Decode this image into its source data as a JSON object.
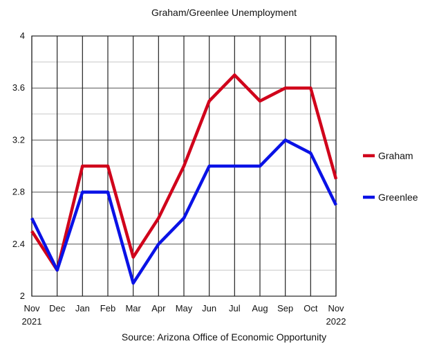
{
  "chart_data": {
    "type": "line",
    "title": "Graham/Greenlee Unemployment",
    "source": "Source: Arizona Office of Economic Opportunity",
    "categories": [
      "Nov",
      "Dec",
      "Jan",
      "Feb",
      "Mar",
      "Apr",
      "May",
      "Jun",
      "Jul",
      "Aug",
      "Sep",
      "Oct",
      "Nov"
    ],
    "category_sublabels": [
      "2021",
      "",
      "",
      "",
      "",
      "",
      "",
      "",
      "",
      "",
      "",
      "",
      "2022"
    ],
    "ylim": [
      2,
      4
    ],
    "yticks": [
      "2",
      "2.4",
      "2.8",
      "3.2",
      "3.6",
      "4"
    ],
    "grid": true,
    "legend_position": "right",
    "series": [
      {
        "name": "Graham",
        "color": "#d0021b",
        "values": [
          2.5,
          2.2,
          3.0,
          3.0,
          2.3,
          2.6,
          3.0,
          3.5,
          3.7,
          3.5,
          3.6,
          3.6,
          2.9
        ]
      },
      {
        "name": "Greenlee",
        "color": "#0a12e6",
        "values": [
          2.6,
          2.2,
          2.8,
          2.8,
          2.1,
          2.4,
          2.6,
          3.0,
          3.0,
          3.0,
          3.2,
          3.1,
          2.7
        ]
      }
    ]
  }
}
